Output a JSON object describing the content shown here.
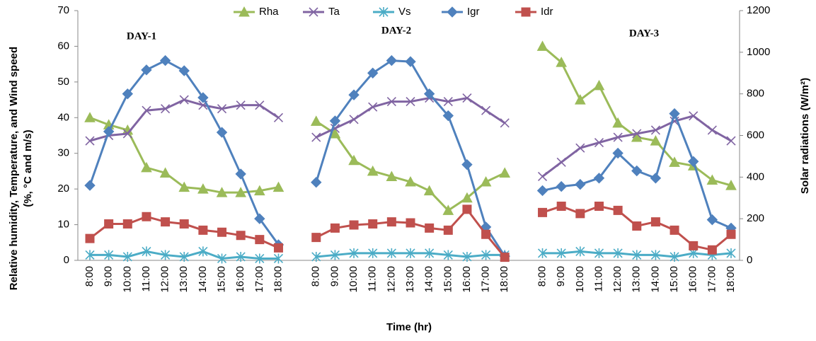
{
  "chart_data": {
    "type": "line",
    "annotations": [
      "DAY-1",
      "DAY-2",
      "DAY-3"
    ],
    "xlabel": "Time (hr)",
    "ylabel": [
      "Relative humidity, Temperature, and Wind speed",
      "(%, °C and m/s)"
    ],
    "y2label": "Solar radiations (W/m²)",
    "categories": [
      "8:00",
      "9:00",
      "10:00",
      "11:00",
      "12:00",
      "13:00",
      "14:00",
      "15:00",
      "16:00",
      "17:00",
      "18:00",
      null,
      "8:00",
      "9:00",
      "10:00",
      "11:00",
      "12:00",
      "13:00",
      "14:00",
      "15:00",
      "16:00",
      "17:00",
      "18:00",
      null,
      "8:00",
      "9:00",
      "10:00",
      "11:00",
      "12:00",
      "13:00",
      "14:00",
      "15:00",
      "16:00",
      "17:00",
      "18:00"
    ],
    "ylim": [
      0,
      70
    ],
    "yticks": [
      0,
      10,
      20,
      30,
      40,
      50,
      60,
      70
    ],
    "y2lim": [
      0,
      1200
    ],
    "y2ticks": [
      0,
      200,
      400,
      600,
      800,
      1000,
      1200
    ],
    "legend": "top",
    "series": [
      {
        "name": "Rha",
        "color": "#9bbb59",
        "marker": "triangle",
        "values": [
          40,
          38,
          36.5,
          26,
          24.5,
          20.5,
          20,
          19,
          19,
          19.5,
          20.5,
          null,
          39,
          35.5,
          28,
          25,
          23.5,
          22,
          19.5,
          14,
          17.5,
          22,
          24.5,
          null,
          60,
          55.5,
          45,
          49,
          38.5,
          34.5,
          33.5,
          27.5,
          26.5,
          22.5,
          21
        ]
      },
      {
        "name": "Ta",
        "color": "#8064a2",
        "marker": "x",
        "values": [
          33.5,
          35,
          35.5,
          42,
          42.5,
          45,
          43.5,
          42.5,
          43.5,
          43.5,
          40,
          null,
          34.5,
          37,
          39.5,
          43,
          44.5,
          44.5,
          45.5,
          44.5,
          45.5,
          42,
          38.5,
          null,
          23.5,
          27.5,
          31.5,
          33,
          34.5,
          35.5,
          36.5,
          39,
          40.5,
          36.5,
          33.5
        ]
      },
      {
        "name": "Vs",
        "color": "#4bacc6",
        "marker": "asterisk",
        "values": [
          1.5,
          1.5,
          1,
          2.5,
          1.5,
          1,
          2.5,
          0.5,
          1,
          0.5,
          0.5,
          null,
          1,
          1.5,
          2,
          2,
          2,
          2,
          2,
          1.5,
          1,
          1.5,
          1.5,
          null,
          2,
          2,
          2.5,
          2,
          2,
          1.5,
          1.5,
          1,
          2,
          1.5,
          2
        ]
      },
      {
        "name": "Igr",
        "color": "#4f81bd",
        "marker": "diamond",
        "axis": "y2",
        "values": [
          360,
          619,
          800,
          915,
          960,
          911,
          782,
          615,
          415,
          200,
          75,
          null,
          375,
          670,
          795,
          900,
          960,
          955,
          800,
          695,
          460,
          160,
          20,
          null,
          335,
          355,
          365,
          395,
          515,
          430,
          395,
          705,
          475,
          195,
          155
        ]
      },
      {
        "name": "Idr",
        "color": "#c0504d",
        "marker": "square",
        "axis": "y2",
        "values": [
          105,
          175,
          175,
          210,
          185,
          175,
          145,
          135,
          120,
          100,
          60,
          null,
          110,
          155,
          170,
          175,
          185,
          180,
          155,
          145,
          245,
          125,
          15,
          null,
          230,
          260,
          225,
          260,
          240,
          165,
          185,
          145,
          70,
          50,
          125
        ]
      }
    ]
  }
}
